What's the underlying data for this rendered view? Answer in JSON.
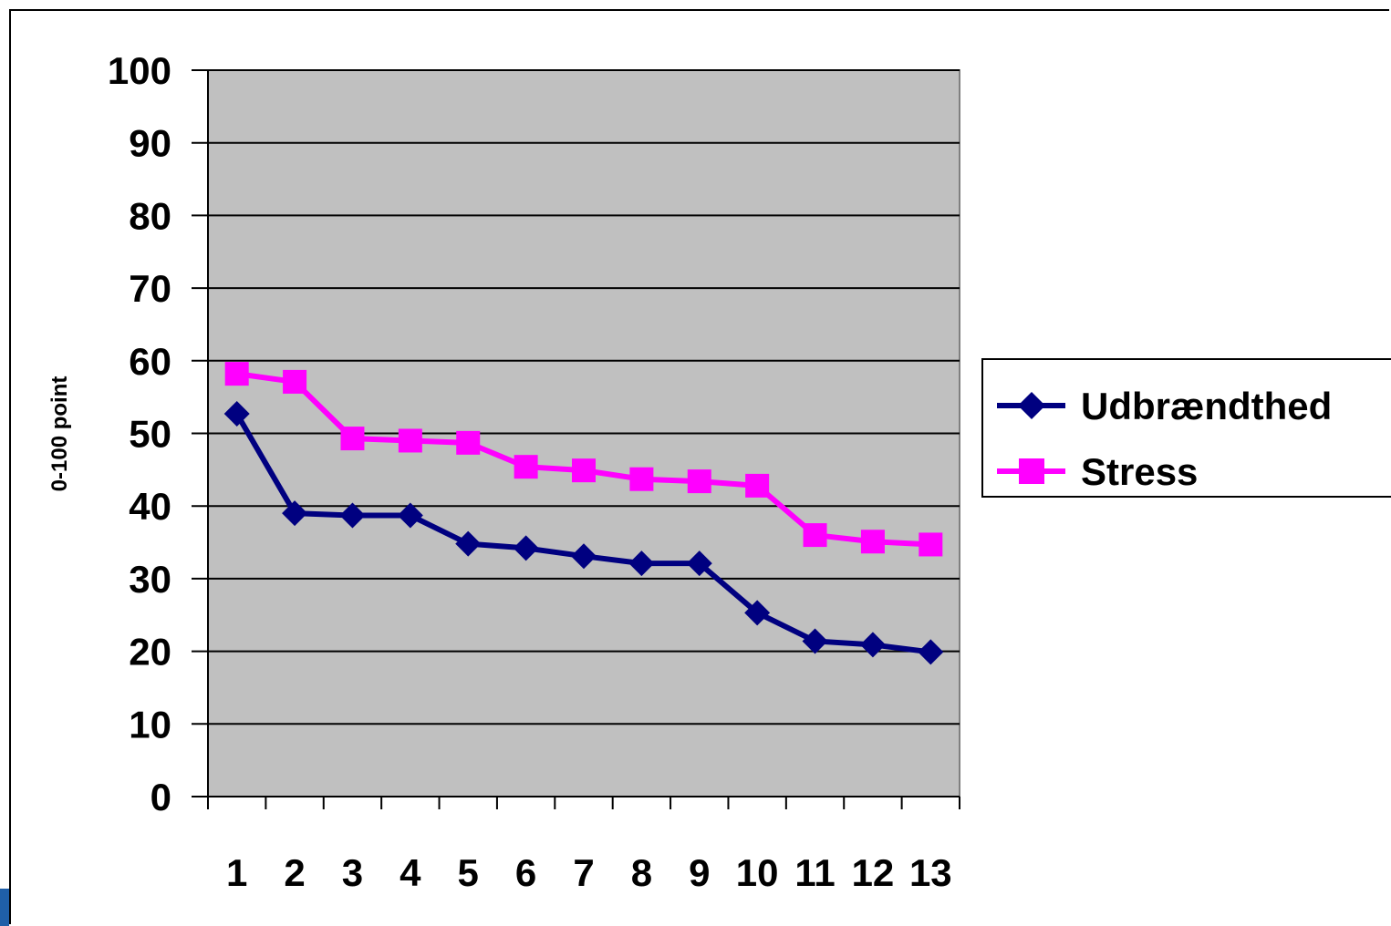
{
  "chart_data": {
    "type": "line",
    "title": "",
    "xlabel": "",
    "ylabel": "0-100 point",
    "categories": [
      "1",
      "2",
      "3",
      "4",
      "5",
      "6",
      "7",
      "8",
      "9",
      "10",
      "11",
      "12",
      "13"
    ],
    "ylim": [
      0,
      100
    ],
    "yticks": [
      0,
      10,
      20,
      30,
      40,
      50,
      60,
      70,
      80,
      90,
      100
    ],
    "grid": true,
    "legend_position": "right",
    "series": [
      {
        "name": "Udbrændthed",
        "marker": "diamond",
        "color": "#000080",
        "values": [
          52.7,
          39,
          38.7,
          38.7,
          34.8,
          34.2,
          33.1,
          32.1,
          32.1,
          25.3,
          21.4,
          20.9,
          19.9
        ]
      },
      {
        "name": "Stress",
        "marker": "square",
        "color": "#ff00ff",
        "values": [
          58.2,
          57.1,
          49.3,
          49,
          48.7,
          45.4,
          44.9,
          43.7,
          43.4,
          42.8,
          36,
          35.1,
          34.7
        ]
      }
    ],
    "colors": {
      "plot_background": "#c0c0c0",
      "gridline": "#000000"
    }
  }
}
